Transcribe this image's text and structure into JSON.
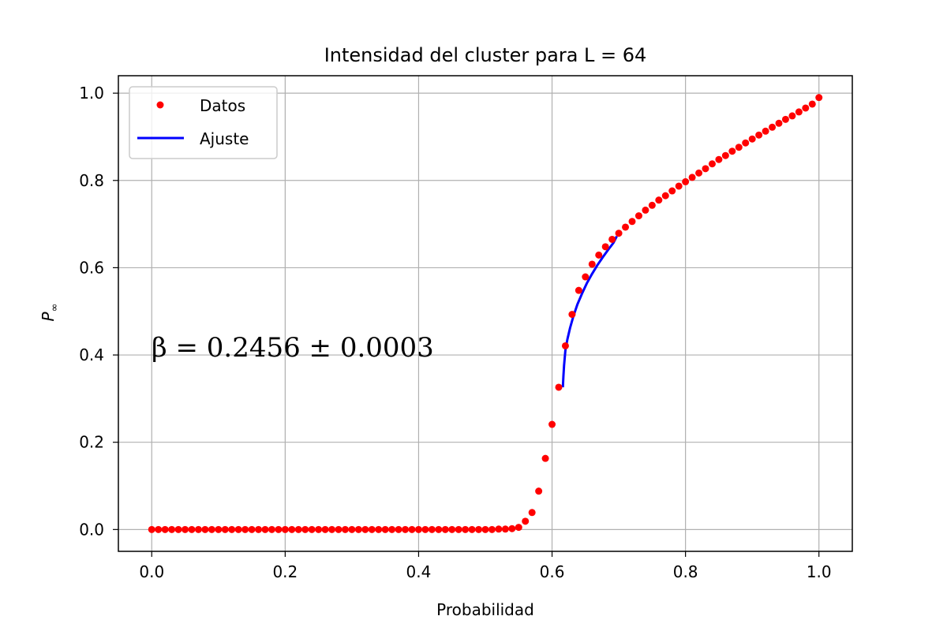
{
  "chart_data": {
    "type": "scatter",
    "title": "Intensidad del cluster para L = 64",
    "xlabel": "Probabilidad",
    "ylabel": "P",
    "ylabel_sub": "∞",
    "xlim": [
      -0.05,
      1.05
    ],
    "ylim": [
      -0.05,
      1.04
    ],
    "xticks": [
      0.0,
      0.2,
      0.4,
      0.6,
      0.8,
      1.0
    ],
    "xtick_labels": [
      "0.0",
      "0.2",
      "0.4",
      "0.6",
      "0.8",
      "1.0"
    ],
    "yticks": [
      0.0,
      0.2,
      0.4,
      0.6,
      0.8,
      1.0
    ],
    "ytick_labels": [
      "0.0",
      "0.2",
      "0.4",
      "0.6",
      "0.8",
      "1.0"
    ],
    "grid": true,
    "legend_position": "upper-left",
    "annotation": "β = 0.2456 ± 0.0003",
    "colors": {
      "datos": "#ff0000",
      "ajuste": "#0000ff",
      "grid": "#b0b0b0"
    },
    "series": [
      {
        "name": "Datos",
        "kind": "points",
        "x": [
          0.0,
          0.01,
          0.02,
          0.03,
          0.04,
          0.05,
          0.06,
          0.07,
          0.08,
          0.09,
          0.1,
          0.11,
          0.12,
          0.13,
          0.14,
          0.15,
          0.16,
          0.17,
          0.18,
          0.19,
          0.2,
          0.21,
          0.22,
          0.23,
          0.24,
          0.25,
          0.26,
          0.27,
          0.28,
          0.29,
          0.3,
          0.31,
          0.32,
          0.33,
          0.34,
          0.35,
          0.36,
          0.37,
          0.38,
          0.39,
          0.4,
          0.41,
          0.42,
          0.43,
          0.44,
          0.45,
          0.46,
          0.47,
          0.48,
          0.49,
          0.5,
          0.51,
          0.52,
          0.53,
          0.54,
          0.55,
          0.56,
          0.57,
          0.58,
          0.59,
          0.6,
          0.61,
          0.62,
          0.63,
          0.64,
          0.65,
          0.66,
          0.67,
          0.68,
          0.69,
          0.7,
          0.71,
          0.72,
          0.73,
          0.74,
          0.75,
          0.76,
          0.77,
          0.78,
          0.79,
          0.8,
          0.81,
          0.82,
          0.83,
          0.84,
          0.85,
          0.86,
          0.87,
          0.88,
          0.89,
          0.9,
          0.91,
          0.92,
          0.93,
          0.94,
          0.95,
          0.96,
          0.97,
          0.98,
          0.99,
          1.0
        ],
        "y": [
          0,
          0,
          0,
          0,
          0,
          0,
          0,
          0,
          0,
          0,
          0,
          0,
          0,
          0,
          0,
          0,
          0,
          0,
          0,
          0,
          0,
          0,
          0,
          0,
          0,
          0,
          0,
          0,
          0,
          0,
          0,
          0,
          0,
          0,
          0,
          0,
          0,
          0,
          0,
          0,
          0,
          0,
          0,
          0,
          0,
          0,
          0,
          0,
          0,
          0,
          0,
          0,
          0.001,
          0.001,
          0.002,
          0.005,
          0.019,
          0.039,
          0.088,
          0.163,
          0.241,
          0.326,
          0.421,
          0.493,
          0.548,
          0.579,
          0.608,
          0.629,
          0.648,
          0.665,
          0.679,
          0.693,
          0.706,
          0.719,
          0.732,
          0.743,
          0.755,
          0.765,
          0.776,
          0.787,
          0.797,
          0.807,
          0.817,
          0.827,
          0.838,
          0.848,
          0.857,
          0.867,
          0.876,
          0.886,
          0.895,
          0.904,
          0.913,
          0.922,
          0.931,
          0.94,
          0.948,
          0.957,
          0.966,
          0.975,
          0.99
        ]
      },
      {
        "name": "Ajuste",
        "kind": "line",
        "x": [
          0.6162,
          0.617,
          0.618,
          0.62,
          0.623,
          0.627,
          0.632,
          0.638,
          0.645,
          0.652,
          0.66,
          0.668,
          0.676,
          0.684,
          0.692,
          0.697
        ],
        "y": [
          0.326,
          0.351,
          0.376,
          0.411,
          0.436,
          0.462,
          0.489,
          0.516,
          0.541,
          0.564,
          0.586,
          0.606,
          0.624,
          0.641,
          0.657,
          0.672
        ]
      }
    ]
  }
}
